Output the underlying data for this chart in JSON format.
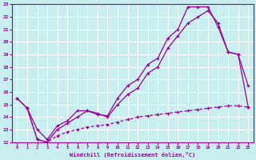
{
  "xlabel": "Windchill (Refroidissement éolien,°C)",
  "background_color": "#c8eef0",
  "grid_color": "#c0dfe0",
  "line_color": "#990099",
  "xlim": [
    -0.5,
    23.5
  ],
  "ylim": [
    12,
    23
  ],
  "x_ticks": [
    0,
    1,
    2,
    3,
    4,
    5,
    6,
    7,
    8,
    9,
    10,
    11,
    12,
    13,
    14,
    15,
    16,
    17,
    18,
    19,
    20,
    21,
    22,
    23
  ],
  "y_ticks": [
    12,
    13,
    14,
    15,
    16,
    17,
    18,
    19,
    20,
    21,
    22,
    23
  ],
  "line1": {
    "x": [
      0,
      1,
      2,
      3,
      4,
      5,
      6,
      7,
      8,
      9,
      10,
      11,
      12,
      13,
      14,
      15,
      16,
      17,
      18,
      19,
      20,
      21,
      22,
      23
    ],
    "y": [
      15.5,
      14.7,
      13.0,
      12.2,
      13.3,
      13.7,
      14.5,
      14.5,
      14.2,
      14.1,
      15.5,
      16.5,
      17.0,
      18.2,
      18.7,
      20.3,
      21.0,
      22.8,
      22.8,
      22.8,
      21.2,
      19.2,
      19.0,
      16.5
    ]
  },
  "line2": {
    "x": [
      0,
      1,
      2,
      3,
      4,
      5,
      6,
      7,
      8,
      9,
      10,
      11,
      12,
      13,
      14,
      15,
      16,
      17,
      18,
      19,
      20,
      21,
      22,
      23
    ],
    "y": [
      15.5,
      14.7,
      12.2,
      12.0,
      13.0,
      13.5,
      14.0,
      14.5,
      14.3,
      14.0,
      15.0,
      15.8,
      16.3,
      17.5,
      18.0,
      19.5,
      20.5,
      21.5,
      22.0,
      22.5,
      21.5,
      19.2,
      19.0,
      14.8
    ]
  },
  "line3_dashed": {
    "x": [
      1,
      2,
      3,
      4,
      5,
      6,
      7,
      8,
      9,
      10,
      11,
      12,
      13,
      14,
      15,
      16,
      17,
      18,
      19,
      20,
      21,
      22,
      23
    ],
    "y": [
      14.7,
      12.2,
      12.0,
      12.5,
      12.8,
      13.0,
      13.2,
      13.3,
      13.4,
      13.6,
      13.8,
      14.0,
      14.1,
      14.2,
      14.3,
      14.4,
      14.5,
      14.6,
      14.7,
      14.8,
      14.9,
      14.9,
      14.8
    ]
  }
}
